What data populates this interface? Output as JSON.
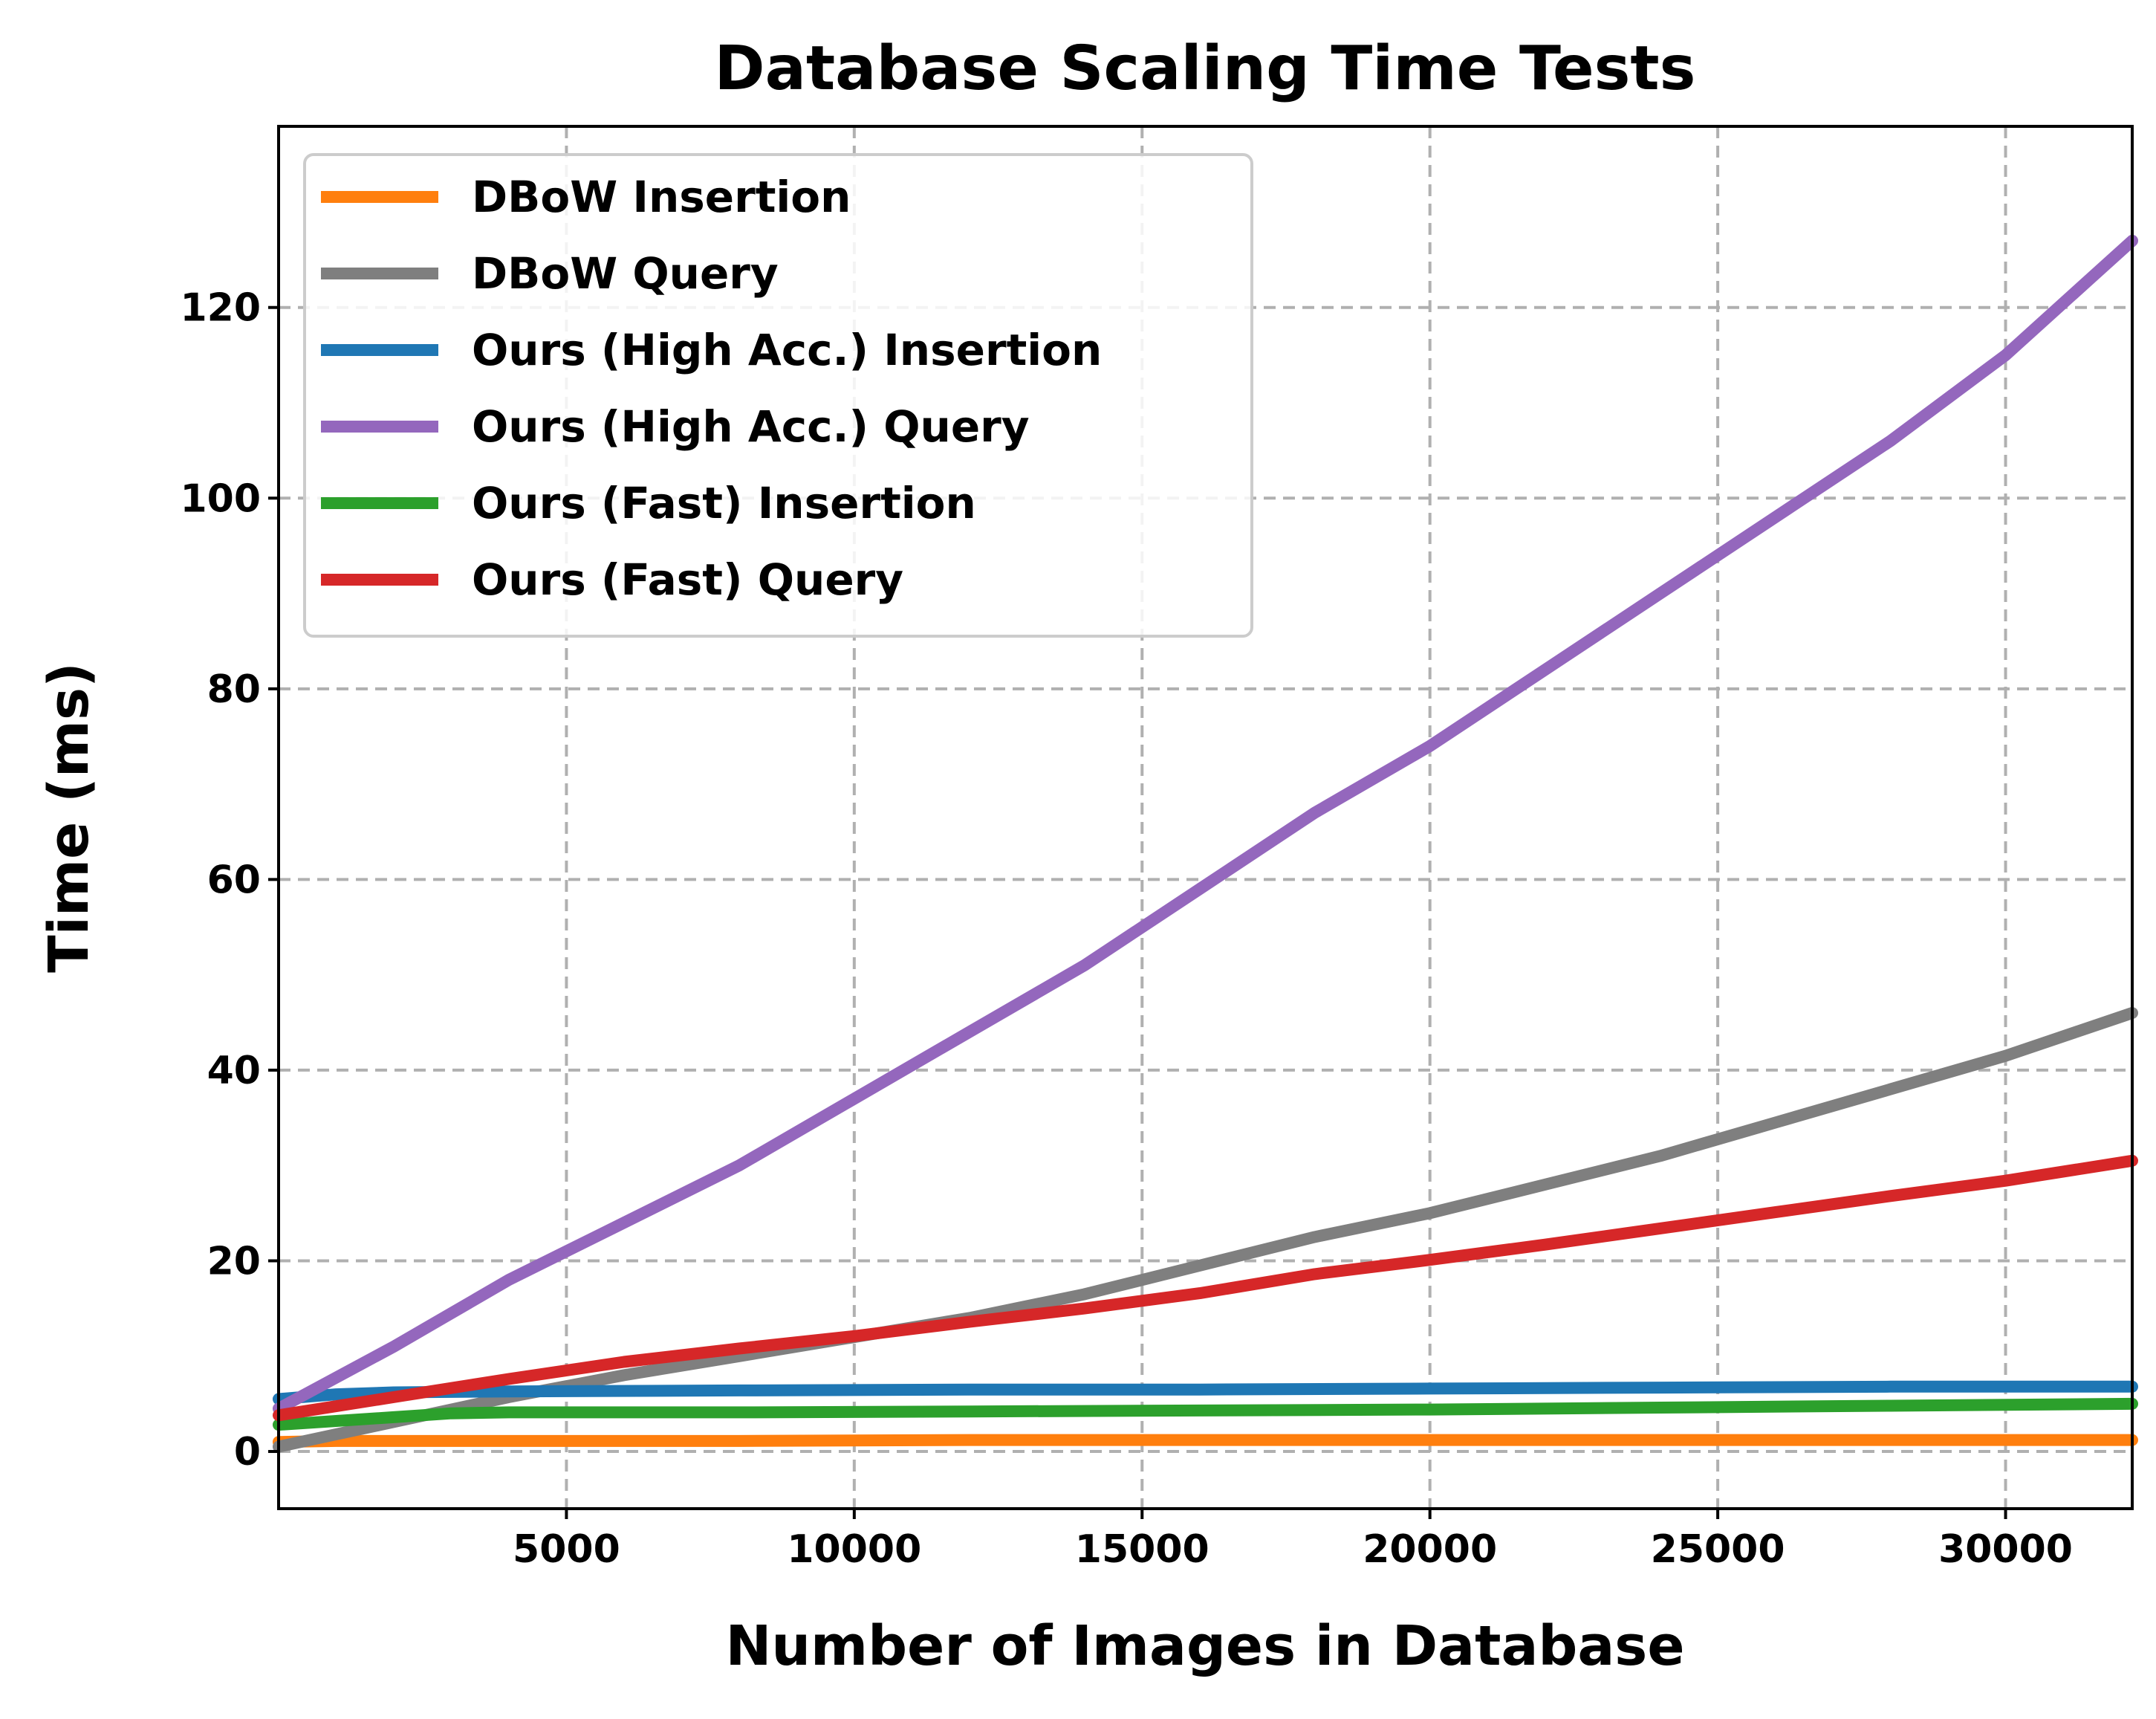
{
  "chart_data": {
    "type": "line",
    "title": "Database Scaling Time Tests",
    "xlabel": "Number of Images in Database",
    "ylabel": "Time (ms)",
    "xlim": [
      0,
      32200
    ],
    "ylim": [
      -6,
      139
    ],
    "xticks": [
      5000,
      10000,
      15000,
      20000,
      25000,
      30000
    ],
    "yticks": [
      0,
      20,
      40,
      60,
      80,
      100,
      120
    ],
    "grid": true,
    "legend_position": "top-left",
    "series": [
      {
        "name": "DBoW Insertion",
        "color": "#ff7f0e",
        "x": [
          0,
          1000,
          2000,
          4000,
          8000,
          12000,
          16000,
          20000,
          24000,
          28000,
          32200
        ],
        "y": [
          1.0,
          1.1,
          1.1,
          1.1,
          1.1,
          1.2,
          1.2,
          1.2,
          1.2,
          1.2,
          1.2
        ]
      },
      {
        "name": "DBoW Query",
        "color": "#7f7f7f",
        "x": [
          0,
          1000,
          2000,
          4000,
          6000,
          8000,
          10000,
          12000,
          14000,
          16000,
          18000,
          20000,
          22000,
          24000,
          26000,
          28000,
          30000,
          32200
        ],
        "y": [
          0.5,
          1.8,
          3.1,
          5.7,
          8.0,
          10.0,
          12.0,
          14.0,
          16.5,
          19.5,
          22.5,
          25.0,
          28.0,
          31.0,
          34.5,
          38.0,
          41.5,
          46.0
        ]
      },
      {
        "name": "Ours (High Acc.) Insertion",
        "color": "#1f77b4",
        "x": [
          0,
          1000,
          2000,
          4000,
          8000,
          12000,
          16000,
          20000,
          24000,
          28000,
          32200
        ],
        "y": [
          5.5,
          6.0,
          6.2,
          6.3,
          6.4,
          6.5,
          6.5,
          6.6,
          6.7,
          6.8,
          6.8
        ]
      },
      {
        "name": "Ours (High Acc.) Query",
        "color": "#9467bd",
        "x": [
          0,
          2000,
          4000,
          6000,
          8000,
          10000,
          12000,
          14000,
          16000,
          18000,
          20000,
          22000,
          24000,
          26000,
          28000,
          30000,
          32200
        ],
        "y": [
          4.5,
          11.0,
          18.0,
          24.0,
          30.0,
          37.0,
          44.0,
          51.0,
          59.0,
          67.0,
          74.0,
          82.0,
          90.0,
          98.0,
          106.0,
          115.0,
          127.0
        ]
      },
      {
        "name": "Ours (Fast) Insertion",
        "color": "#2ca02c",
        "x": [
          0,
          1000,
          2000,
          3000,
          4000,
          8000,
          12000,
          16000,
          20000,
          24000,
          28000,
          32200
        ],
        "y": [
          2.8,
          3.2,
          3.6,
          4.0,
          4.1,
          4.1,
          4.2,
          4.3,
          4.4,
          4.6,
          4.8,
          5.0
        ]
      },
      {
        "name": "Ours (Fast) Query",
        "color": "#d62728",
        "x": [
          0,
          2000,
          4000,
          6000,
          8000,
          10000,
          12000,
          14000,
          16000,
          18000,
          20000,
          22000,
          24000,
          26000,
          28000,
          30000,
          32200
        ],
        "y": [
          3.8,
          5.7,
          7.6,
          9.4,
          10.8,
          12.1,
          13.6,
          15.0,
          16.6,
          18.6,
          20.1,
          21.7,
          23.4,
          25.1,
          26.8,
          28.4,
          30.5
        ]
      }
    ]
  }
}
